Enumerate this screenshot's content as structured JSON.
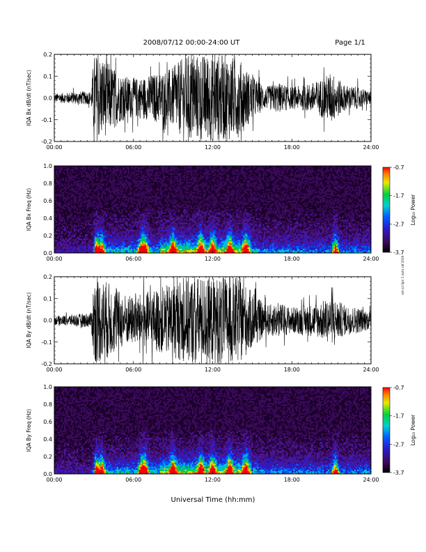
{
  "header": {
    "title": "2008/07/12  00:00-24:00 UT",
    "page": "Page 1/1"
  },
  "footer": {
    "x_title": "Universal Time (hh:mm)",
    "side_note": "ssh (c) fgm 1 (ssh) cdf 2019"
  },
  "chart_data": [
    {
      "type": "line",
      "title": "",
      "ylabel": "IQA Bx dB/dt (nT/sec)",
      "xlabel": "",
      "x_ticks": [
        "00:00",
        "06:00",
        "12:00",
        "18:00",
        "24:00"
      ],
      "x_range_hours": [
        0,
        24
      ],
      "ylim": [
        -0.2,
        0.2
      ],
      "y_ticks": [
        "0.2",
        "0.1",
        "0.0",
        "-0.1",
        "-0.2"
      ],
      "series": [
        {
          "hours": [
            0,
            1,
            2,
            2.8,
            3.0,
            3.3,
            4,
            5,
            6,
            7,
            8,
            9,
            10,
            11,
            12,
            13,
            14,
            15,
            16,
            17,
            18,
            19,
            20,
            21,
            22,
            23,
            24
          ],
          "amplitude": [
            0.02,
            0.025,
            0.03,
            0.03,
            0.2,
            0.2,
            0.17,
            0.11,
            0.09,
            0.1,
            0.12,
            0.14,
            0.2,
            0.2,
            0.2,
            0.2,
            0.18,
            0.1,
            0.05,
            0.07,
            0.05,
            0.06,
            0.08,
            0.12,
            0.06,
            0.05,
            0.03
          ]
        }
      ]
    },
    {
      "type": "heatmap",
      "title": "",
      "ylabel": "IQA Bx Freq (Hz)",
      "xlabel": "",
      "x_ticks": [
        "00:00",
        "06:00",
        "12:00",
        "18:00",
        "24:00"
      ],
      "x_range_hours": [
        0,
        24
      ],
      "ylim": [
        0.0,
        1.0
      ],
      "y_ticks": [
        "1.0",
        "0.8",
        "0.6",
        "0.4",
        "0.2",
        "0.0"
      ],
      "colorbar": {
        "label": "Log₁₀ Power",
        "range": [
          -3.7,
          -0.7
        ],
        "ticks": [
          "-0.7",
          "-1.7",
          "-2.7",
          "-3.7"
        ]
      },
      "bursts_hours": [
        3.2,
        3.6,
        6.6,
        6.9,
        9.0,
        11.1,
        12.0,
        13.3,
        14.5,
        21.3
      ]
    },
    {
      "type": "line",
      "title": "",
      "ylabel": "IQA By dB/dt (nT/sec)",
      "xlabel": "",
      "x_ticks": [
        "00:00",
        "06:00",
        "12:00",
        "18:00",
        "24:00"
      ],
      "x_range_hours": [
        0,
        24
      ],
      "ylim": [
        -0.2,
        0.2
      ],
      "y_ticks": [
        "0.2",
        "0.1",
        "0.0",
        "-0.1",
        "-0.2"
      ],
      "series": [
        {
          "hours": [
            0,
            1,
            2,
            2.8,
            3.0,
            3.3,
            4,
            5,
            6,
            7,
            8,
            9,
            10,
            11,
            12,
            13,
            14,
            15,
            16,
            17,
            18,
            19,
            20,
            21,
            22,
            23,
            24
          ],
          "amplitude": [
            0.02,
            0.025,
            0.03,
            0.035,
            0.2,
            0.2,
            0.18,
            0.13,
            0.11,
            0.13,
            0.15,
            0.17,
            0.2,
            0.2,
            0.2,
            0.2,
            0.2,
            0.13,
            0.07,
            0.08,
            0.06,
            0.07,
            0.08,
            0.11,
            0.07,
            0.06,
            0.04
          ]
        }
      ]
    },
    {
      "type": "heatmap",
      "title": "",
      "ylabel": "IQA By Freq (Hz)",
      "xlabel": "",
      "x_ticks": [
        "00:00",
        "06:00",
        "12:00",
        "18:00",
        "24:00"
      ],
      "x_range_hours": [
        0,
        24
      ],
      "ylim": [
        0.0,
        1.0
      ],
      "y_ticks": [
        "1.0",
        "0.8",
        "0.6",
        "0.4",
        "0.2",
        "0.0"
      ],
      "colorbar": {
        "label": "Log₁₀ Power",
        "range": [
          -3.7,
          -0.7
        ],
        "ticks": [
          "-0.7",
          "-1.7",
          "-2.7",
          "-3.7"
        ]
      },
      "bursts_hours": [
        3.2,
        3.6,
        6.6,
        6.9,
        9.0,
        11.1,
        12.0,
        13.3,
        14.5,
        21.3
      ]
    }
  ]
}
